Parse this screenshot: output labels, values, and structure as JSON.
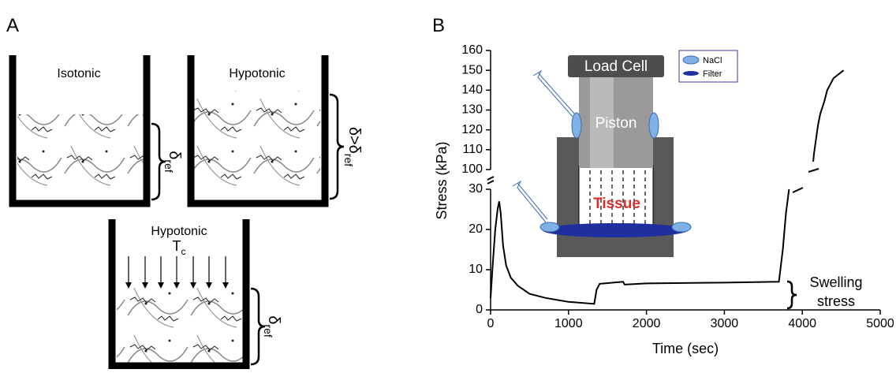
{
  "panel_a": {
    "label": "A",
    "boxes": [
      {
        "title": "Isotonic",
        "delta": "δ",
        "subscript": "ref"
      },
      {
        "title": "Hypotonic",
        "delta": "δ>δ",
        "subscript": "ref"
      },
      {
        "title": "Hypotonic",
        "load": "T",
        "load_subscript": "c",
        "delta": "δ",
        "subscript": "ref"
      }
    ]
  },
  "inset": {
    "load_cell": "Load Cell",
    "piston": "Piston",
    "tissue": "Tissue",
    "legend": [
      "NaCl",
      "Filter"
    ]
  },
  "annotation": [
    "Swelling",
    "stress"
  ],
  "chart_data": [
    {
      "type": "line",
      "panel_label": "B",
      "x_label": "Time (sec)",
      "y_label": "Stress (kPa)",
      "x": [
        0,
        30,
        60,
        90,
        110,
        130,
        160,
        200,
        260,
        350,
        500,
        700,
        1000,
        1330,
        1360,
        1400,
        1700,
        1720,
        2000,
        3000,
        3700,
        3750,
        3790,
        3830
      ],
      "values": [
        3,
        12,
        20,
        25,
        27,
        24,
        16,
        11,
        8,
        6,
        4,
        3,
        2,
        1.5,
        5,
        6.5,
        7,
        6.3,
        6.6,
        6.8,
        7,
        15,
        24,
        30
      ],
      "color": "#000000",
      "xlim": [
        0,
        5000
      ],
      "xticks": [
        0,
        1000,
        2000,
        3000,
        4000,
        5000
      ],
      "ylim": [
        0,
        30
      ],
      "yticks": [
        0,
        10,
        20,
        30
      ]
    },
    {
      "type": "line",
      "x": [
        4140,
        4150,
        4200,
        4230,
        4280,
        4320,
        4400,
        4530
      ],
      "values": [
        104,
        108,
        122,
        128,
        134,
        140,
        146,
        150
      ],
      "color": "#000000",
      "xlim": [
        0,
        5000
      ],
      "ylim": [
        100,
        160
      ],
      "yticks": [
        100,
        110,
        120,
        130,
        140,
        150,
        160
      ]
    }
  ]
}
